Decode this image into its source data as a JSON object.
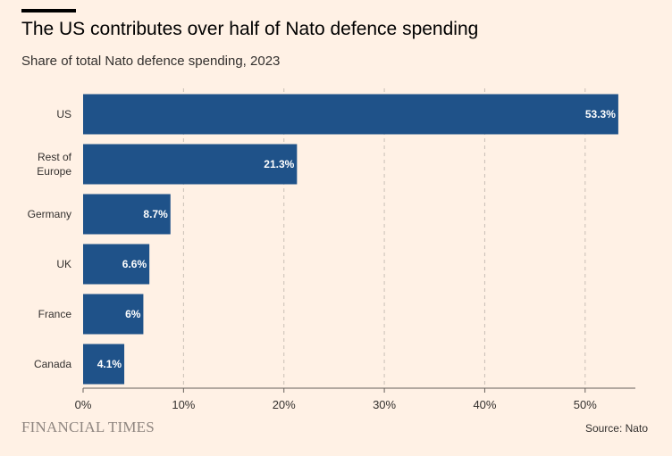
{
  "header": {
    "title": "The US contributes over half of Nato defence spending",
    "subtitle": "Share of total Nato defence spending, 2023"
  },
  "footer": {
    "brand": "FINANCIAL TIMES",
    "source": "Source: Nato"
  },
  "colors": {
    "background": "#fff1e5",
    "bar": "#1f5289",
    "grid": "#c9bfb6",
    "axis": "#66605c",
    "text": "#33302e"
  },
  "chart_data": {
    "type": "bar",
    "orientation": "horizontal",
    "title": "The US contributes over half of Nato defence spending",
    "subtitle": "Share of total Nato defence spending, 2023",
    "xlabel": "",
    "ylabel": "",
    "categories": [
      [
        "US"
      ],
      [
        "Rest of",
        "Europe"
      ],
      [
        "Germany"
      ],
      [
        "UK"
      ],
      [
        "France"
      ],
      [
        "Canada"
      ]
    ],
    "values": [
      53.3,
      21.3,
      8.7,
      6.6,
      6,
      4.1
    ],
    "value_labels": [
      "53.3%",
      "21.3%",
      "8.7%",
      "6.6%",
      "6%",
      "4.1%"
    ],
    "xlim": [
      0,
      55
    ],
    "xticks": [
      0,
      10,
      20,
      30,
      40,
      50
    ],
    "xtick_labels": [
      "0%",
      "10%",
      "20%",
      "30%",
      "40%",
      "50%"
    ],
    "grid": "vertical dashed",
    "legend": "none"
  }
}
